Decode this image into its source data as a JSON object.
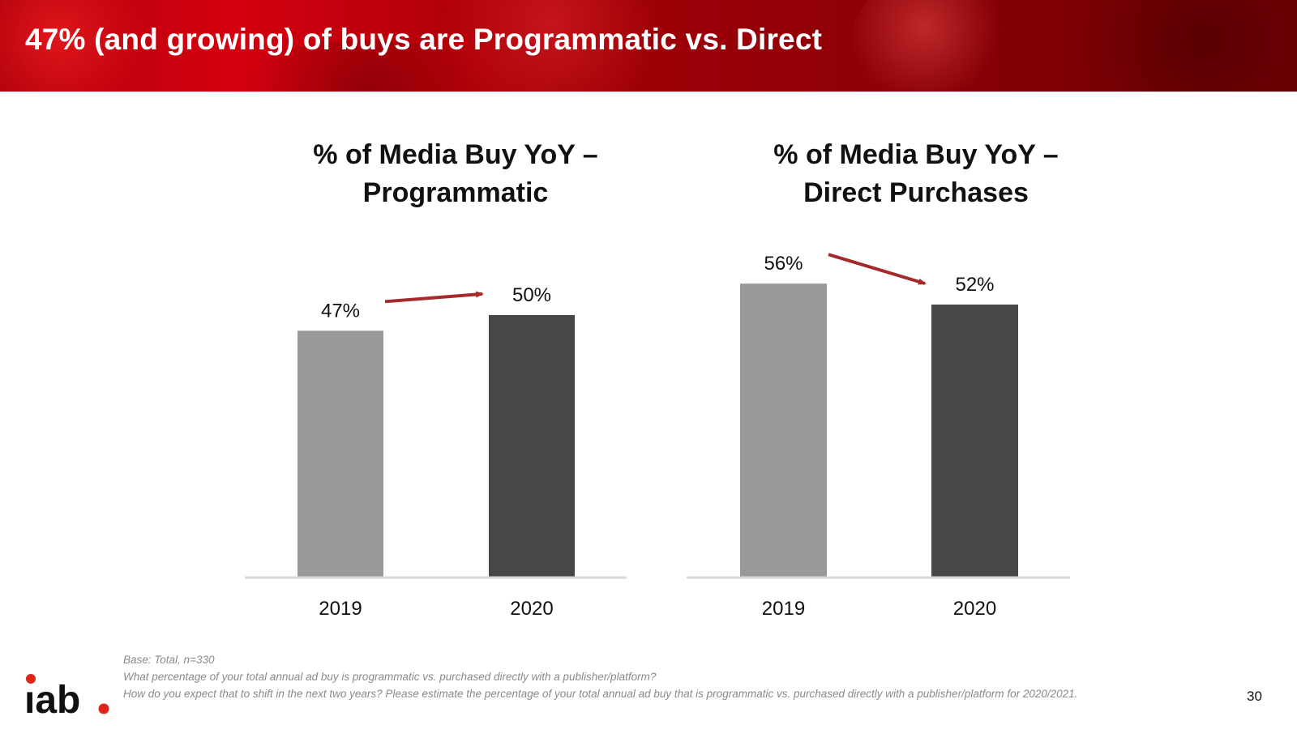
{
  "slide": {
    "title": "47% (and growing) of buys are Programmatic vs. Direct",
    "page_number": "30"
  },
  "chart_data": [
    {
      "type": "bar",
      "title": "% of Media Buy YoY – Programmatic",
      "title_lines": [
        "% of Media Buy YoY –",
        "Programmatic"
      ],
      "categories": [
        "2019",
        "2020"
      ],
      "values": [
        47,
        50
      ],
      "data_labels": [
        "47%",
        "50%"
      ],
      "colors": [
        "#999999",
        "#474747"
      ],
      "ylim": [
        0,
        65
      ],
      "xlabel": "",
      "ylabel": "",
      "grid": false,
      "annotation": "arrow-up"
    },
    {
      "type": "bar",
      "title": "% of Media Buy YoY – Direct Purchases",
      "title_lines": [
        "% of Media Buy YoY –",
        "Direct Purchases"
      ],
      "categories": [
        "2019",
        "2020"
      ],
      "values": [
        56,
        52
      ],
      "data_labels": [
        "56%",
        "52%"
      ],
      "colors": [
        "#999999",
        "#474747"
      ],
      "ylim": [
        0,
        65
      ],
      "xlabel": "",
      "ylabel": "",
      "grid": false,
      "annotation": "arrow-down"
    }
  ],
  "footnotes": {
    "base": "Base: Total, n=330",
    "q1": "What percentage of your total annual ad buy is programmatic vs. purchased directly with a publisher/platform?",
    "q2": "How do you expect that to shift in the next two years? Please estimate the percentage of your total annual ad buy that is programmatic vs. purchased directly with a publisher/platform for 2020/2021."
  },
  "logo": {
    "text": "iab.",
    "accent": "#e2231a",
    "color": "#111111"
  },
  "colors": {
    "banner": "#b0000a",
    "arrow": "#a52a2a",
    "axis": "#d9d9d9"
  }
}
